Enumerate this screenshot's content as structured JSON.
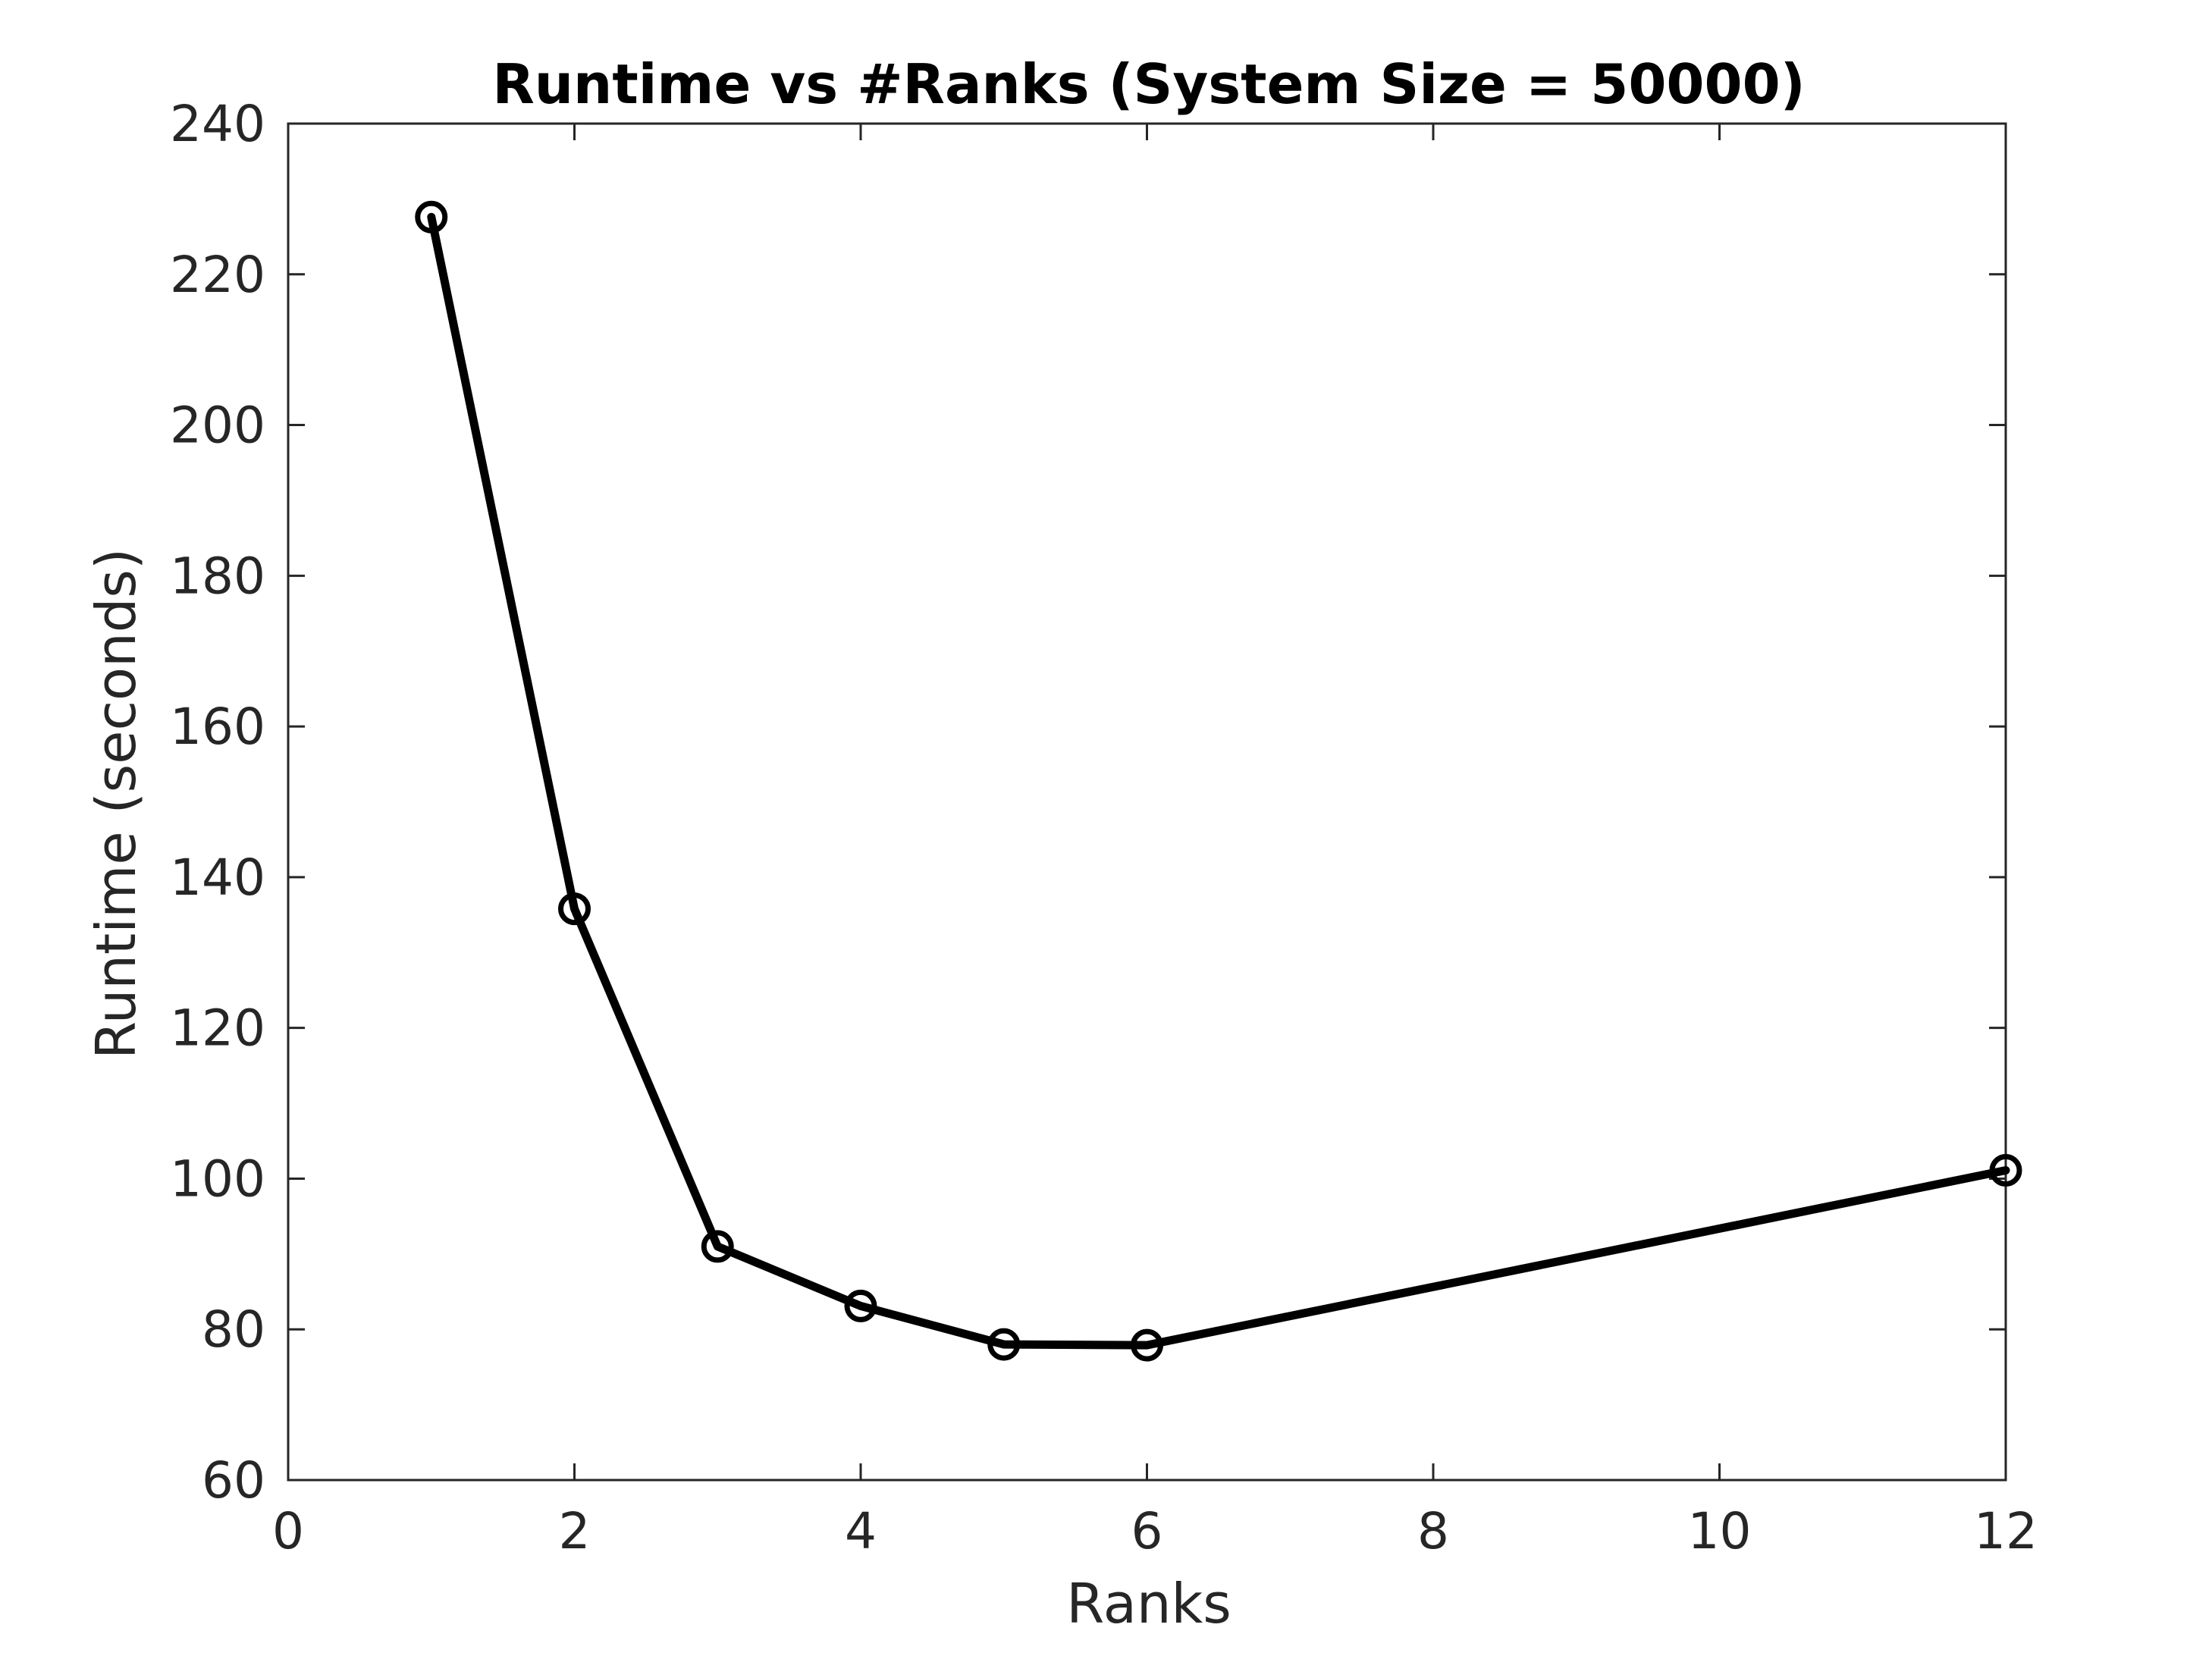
{
  "chart_data": {
    "type": "line",
    "title": "Runtime vs #Ranks (System Size = 50000)",
    "xlabel": "Ranks",
    "ylabel": "Runtime (seconds)",
    "xlim": [
      0,
      12
    ],
    "ylim": [
      60,
      240
    ],
    "xticks": [
      0,
      2,
      4,
      6,
      8,
      10,
      12
    ],
    "yticks": [
      60,
      80,
      100,
      120,
      140,
      160,
      180,
      200,
      220,
      240
    ],
    "grid": false,
    "legend": "none",
    "series": [
      {
        "marker": "circle",
        "color": "#000000",
        "points": [
          {
            "x": 1,
            "y": 227.6
          },
          {
            "x": 2,
            "y": 135.8
          },
          {
            "x": 3,
            "y": 91.0
          },
          {
            "x": 4,
            "y": 83.1
          },
          {
            "x": 5,
            "y": 78.0
          },
          {
            "x": 6,
            "y": 77.9
          },
          {
            "x": 12,
            "y": 101.1
          }
        ]
      }
    ]
  },
  "colors": {
    "axis": "#262626",
    "line": "#000000",
    "text": "#262626",
    "title": "#000000"
  }
}
